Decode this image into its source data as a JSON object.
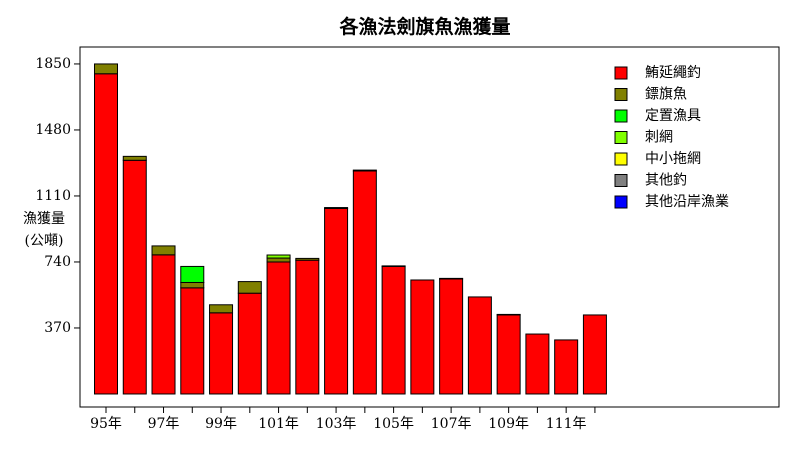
{
  "chart_data": {
    "type": "stacked_bar",
    "title": "各漁法劍旗魚漁獲量",
    "y_label": [
      "漁獲量",
      "(公噸)"
    ],
    "categories": [
      "95年",
      null,
      "97年",
      null,
      "99年",
      null,
      "101年",
      null,
      "103年",
      null,
      "105年",
      null,
      "107年",
      null,
      "109年",
      null,
      "111年",
      null
    ],
    "series": [
      {
        "name": "鮪延繩釣",
        "color": "#ff0000",
        "values": [
          1795,
          1310,
          780,
          595,
          455,
          565,
          740,
          750,
          1040,
          1250,
          715,
          639,
          645,
          544,
          443,
          336,
          303,
          443
        ]
      },
      {
        "name": "鏢旗魚",
        "color": "#808000",
        "values": [
          55,
          22,
          50,
          30,
          45,
          65,
          22,
          10,
          5,
          5,
          3,
          0,
          3,
          0,
          3,
          0,
          0,
          0
        ]
      },
      {
        "name": "定置漁具",
        "color": "#00ff00",
        "values": [
          0,
          0,
          0,
          90,
          0,
          0,
          0,
          0,
          0,
          0,
          0,
          0,
          0,
          0,
          0,
          0,
          0,
          0
        ]
      },
      {
        "name": "刺網",
        "color": "#80ff00",
        "values": [
          0,
          0,
          0,
          0,
          0,
          0,
          17,
          0,
          0,
          0,
          0,
          0,
          0,
          0,
          0,
          0,
          0,
          0
        ]
      },
      {
        "name": "中小拖網",
        "color": "#ffff00",
        "values": [
          0,
          0,
          0,
          0,
          0,
          0,
          0,
          0,
          0,
          0,
          0,
          0,
          0,
          0,
          0,
          0,
          0,
          0
        ]
      },
      {
        "name": "其他釣",
        "color": "#808080",
        "values": [
          0,
          0,
          0,
          0,
          0,
          0,
          0,
          0,
          0,
          0,
          0,
          0,
          0,
          0,
          0,
          0,
          0,
          0
        ]
      },
      {
        "name": "其他沿岸漁業",
        "color": "#0000ff",
        "values": [
          0,
          0,
          0,
          0,
          0,
          0,
          0,
          0,
          0,
          0,
          0,
          0,
          0,
          0,
          0,
          0,
          0,
          0
        ]
      }
    ],
    "ylim": [
      -73,
      1945
    ],
    "yticks": [
      370,
      740,
      1110,
      1480,
      1850
    ],
    "legend": "upper right"
  }
}
